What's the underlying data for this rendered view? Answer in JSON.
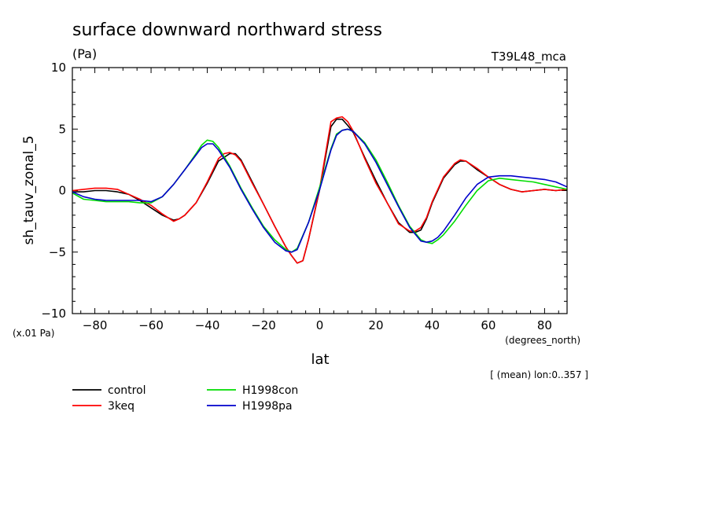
{
  "chart_data": {
    "type": "line",
    "title": "surface downward northward stress",
    "subtitle": "(Pa)",
    "experiment_label": "T39L48_mca",
    "xlabel": "lat",
    "xunits": "(degrees_north)",
    "ylabel": "sh_tauv_zonal_5",
    "yunits": "(x.01 Pa)",
    "range_note": "[ (mean) lon:0..357 ]",
    "xlim": [
      -88,
      88
    ],
    "ylim": [
      -10,
      10
    ],
    "x_ticks": [
      -80,
      -60,
      -40,
      -20,
      0,
      20,
      40,
      60,
      80
    ],
    "y_ticks": [
      -10,
      -5,
      0,
      5,
      10
    ],
    "x_tick_labels": [
      "−80",
      "−60",
      "−40",
      "−20",
      "0",
      "20",
      "40",
      "60",
      "80"
    ],
    "y_tick_labels": [
      "−10",
      "−5",
      "0",
      "5",
      "10"
    ],
    "grid": false,
    "legend_position": "bottom-left",
    "series": [
      {
        "name": "control",
        "color": "#000000",
        "x": [
          -88,
          -84,
          -80,
          -76,
          -72,
          -68,
          -64,
          -60,
          -56,
          -52,
          -50,
          -48,
          -44,
          -40,
          -36,
          -32,
          -30,
          -28,
          -24,
          -20,
          -16,
          -12,
          -10,
          -8,
          -6,
          -4,
          0,
          4,
          6,
          8,
          10,
          12,
          16,
          20,
          24,
          28,
          32,
          34,
          36,
          38,
          40,
          44,
          48,
          50,
          52,
          56,
          60,
          64,
          68,
          72,
          76,
          80,
          84,
          88
        ],
        "y": [
          -0.1,
          -0.1,
          0.0,
          0.0,
          -0.1,
          -0.3,
          -0.8,
          -1.4,
          -2.0,
          -2.4,
          -2.3,
          -2.0,
          -1.0,
          0.6,
          2.4,
          3.0,
          3.0,
          2.5,
          0.7,
          -1.1,
          -2.9,
          -4.6,
          -5.3,
          -5.9,
          -5.7,
          -4.0,
          0.1,
          5.2,
          5.8,
          5.8,
          5.3,
          4.7,
          2.7,
          0.8,
          -1.0,
          -2.6,
          -3.4,
          -3.4,
          -3.2,
          -2.3,
          -1.0,
          1.0,
          2.1,
          2.4,
          2.4,
          1.7,
          1.1,
          0.5,
          0.1,
          -0.1,
          0.0,
          0.1,
          0.0,
          0.1
        ]
      },
      {
        "name": "3keq",
        "color": "#ff0000",
        "x": [
          -88,
          -84,
          -80,
          -76,
          -72,
          -68,
          -64,
          -60,
          -56,
          -52,
          -50,
          -48,
          -44,
          -40,
          -36,
          -34,
          -32,
          -30,
          -28,
          -24,
          -20,
          -16,
          -12,
          -10,
          -8,
          -6,
          -4,
          0,
          4,
          6,
          8,
          10,
          12,
          16,
          20,
          24,
          28,
          32,
          34,
          36,
          38,
          40,
          44,
          48,
          50,
          52,
          56,
          60,
          64,
          68,
          72,
          76,
          80,
          84,
          88
        ],
        "y": [
          0.0,
          0.1,
          0.2,
          0.2,
          0.1,
          -0.3,
          -0.7,
          -1.2,
          -1.9,
          -2.5,
          -2.3,
          -2.0,
          -1.0,
          0.7,
          2.6,
          3.0,
          3.1,
          2.9,
          2.4,
          0.6,
          -1.1,
          -2.9,
          -4.6,
          -5.3,
          -5.9,
          -5.7,
          -4.0,
          0.2,
          5.6,
          5.9,
          6.0,
          5.6,
          4.8,
          2.6,
          0.6,
          -1.0,
          -2.7,
          -3.3,
          -3.3,
          -3.0,
          -2.2,
          -0.9,
          1.1,
          2.2,
          2.5,
          2.4,
          1.8,
          1.1,
          0.5,
          0.1,
          -0.1,
          0.0,
          0.1,
          0.0,
          0.1
        ]
      },
      {
        "name": "H1998con",
        "color": "#00dd00",
        "x": [
          -88,
          -84,
          -80,
          -76,
          -72,
          -68,
          -64,
          -60,
          -56,
          -52,
          -48,
          -44,
          -42,
          -40,
          -38,
          -36,
          -32,
          -28,
          -24,
          -20,
          -16,
          -12,
          -10,
          -8,
          -4,
          0,
          4,
          6,
          8,
          10,
          12,
          16,
          20,
          24,
          28,
          32,
          36,
          38,
          40,
          42,
          44,
          48,
          52,
          56,
          60,
          64,
          68,
          72,
          76,
          80,
          84,
          88
        ],
        "y": [
          -0.2,
          -0.7,
          -0.8,
          -0.9,
          -0.9,
          -0.9,
          -1.0,
          -1.0,
          -0.5,
          0.5,
          1.7,
          3.0,
          3.7,
          4.1,
          4.0,
          3.5,
          2.0,
          0.2,
          -1.4,
          -2.9,
          -4.0,
          -4.8,
          -5.0,
          -4.7,
          -2.6,
          0.3,
          3.4,
          4.6,
          4.9,
          5.0,
          4.8,
          3.9,
          2.5,
          0.7,
          -1.2,
          -2.9,
          -4.0,
          -4.2,
          -4.3,
          -4.0,
          -3.6,
          -2.5,
          -1.2,
          0.0,
          0.8,
          1.0,
          0.9,
          0.8,
          0.7,
          0.5,
          0.3,
          0.1
        ]
      },
      {
        "name": "H1998pa",
        "color": "#0000cc",
        "x": [
          -88,
          -84,
          -80,
          -76,
          -72,
          -68,
          -64,
          -60,
          -56,
          -52,
          -48,
          -44,
          -42,
          -40,
          -38,
          -36,
          -32,
          -28,
          -24,
          -20,
          -16,
          -12,
          -10,
          -8,
          -4,
          0,
          4,
          6,
          8,
          10,
          12,
          16,
          20,
          24,
          28,
          32,
          36,
          38,
          40,
          42,
          44,
          48,
          52,
          56,
          60,
          64,
          68,
          72,
          76,
          80,
          84,
          88
        ],
        "y": [
          -0.1,
          -0.5,
          -0.7,
          -0.8,
          -0.8,
          -0.8,
          -0.8,
          -0.9,
          -0.5,
          0.5,
          1.7,
          2.9,
          3.5,
          3.8,
          3.8,
          3.3,
          1.9,
          0.1,
          -1.5,
          -3.0,
          -4.2,
          -4.9,
          -5.0,
          -4.8,
          -2.6,
          0.1,
          3.3,
          4.5,
          4.9,
          5.0,
          4.8,
          3.8,
          2.3,
          0.5,
          -1.3,
          -3.0,
          -4.1,
          -4.2,
          -4.1,
          -3.8,
          -3.3,
          -2.0,
          -0.6,
          0.5,
          1.1,
          1.2,
          1.2,
          1.1,
          1.0,
          0.9,
          0.7,
          0.3
        ]
      }
    ]
  }
}
